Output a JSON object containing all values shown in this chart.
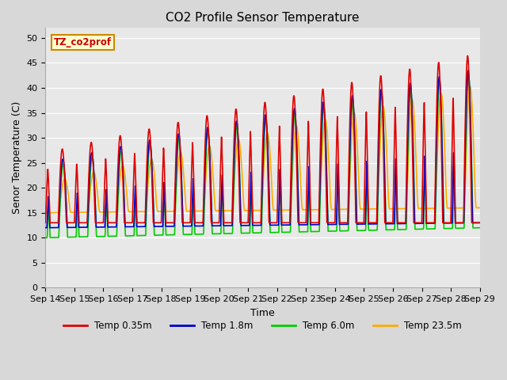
{
  "title": "CO2 Profile Sensor Temperature",
  "xlabel": "Time",
  "ylabel": "Senor Temperature (C)",
  "ylim": [
    0,
    52
  ],
  "yticks": [
    0,
    5,
    10,
    15,
    20,
    25,
    30,
    35,
    40,
    45,
    50
  ],
  "x_labels": [
    "Sep 14",
    "Sep 15",
    "Sep 16",
    "Sep 17",
    "Sep 18",
    "Sep 19",
    "Sep 20",
    "Sep 21",
    "Sep 22",
    "Sep 23",
    "Sep 24",
    "Sep 25",
    "Sep 26",
    "Sep 27",
    "Sep 28",
    "Sep 29"
  ],
  "legend_label": "TZ_co2prof",
  "series_labels": [
    "Temp 0.35m",
    "Temp 1.8m",
    "Temp 6.0m",
    "Temp 23.5m"
  ],
  "series_colors": [
    "#dd0000",
    "#0000cc",
    "#00cc00",
    "#ffaa00"
  ],
  "background_color": "#e8e8e8",
  "plot_bg_color": "#e8e8e8",
  "grid_color": "#ffffff",
  "title_fontsize": 11,
  "axis_fontsize": 9,
  "tick_fontsize": 8
}
